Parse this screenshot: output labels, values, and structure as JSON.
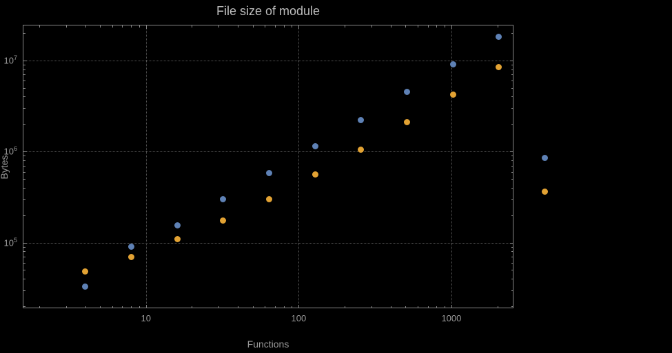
{
  "chart_data": {
    "type": "scatter",
    "title": "File size of module",
    "xlabel": "Functions",
    "ylabel": "Bytes",
    "xscale": "log",
    "yscale": "log",
    "xlim": [
      1.56,
      2550
    ],
    "ylim": [
      19000,
      24600000
    ],
    "x_ticks": [
      10,
      100,
      1000
    ],
    "y_ticks": [
      100000,
      1000000,
      10000000
    ],
    "grid": true,
    "legend": "none",
    "background_color": "#000000",
    "x": [
      4,
      8,
      16,
      32,
      64,
      128,
      256,
      512,
      1024,
      2048,
      4096
    ],
    "series": [
      {
        "name": "series-blue",
        "color": "#5e81b5",
        "values": [
          33000,
          90000,
          155000,
          300000,
          580000,
          1150000,
          2200000,
          4500000,
          9000000,
          18000000,
          850000
        ]
      },
      {
        "name": "series-orange",
        "color": "#e2a233",
        "values": [
          48000,
          70000,
          110000,
          175000,
          300000,
          560000,
          1050000,
          2100000,
          4200000,
          8500000,
          360000
        ]
      }
    ],
    "note_points_outside_frame": "the two points at x=4096 render to the right of the plot frame"
  }
}
